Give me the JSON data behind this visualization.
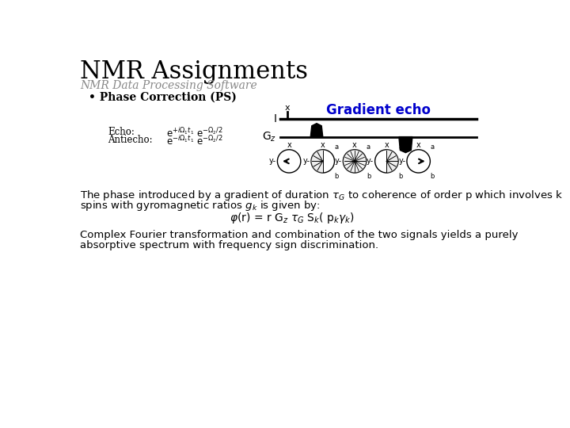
{
  "title": "NMR Assignments",
  "subtitle": "NMR Data Processing Software",
  "bullet": "• Phase Correction (PS)",
  "gradient_echo_label": "Gradient echo",
  "gradient_echo_color": "#0000CC",
  "echo_label": "Echo:",
  "antiecho_label": "Antiecho:",
  "paragraph1_line1": "The phase introduced by a gradient of duration τ",
  "paragraph1_tail1": " to coherence of order p which involves k",
  "paragraph1_line2": "spins with gyromagnetic ratios g",
  "paragraph1_tail2": " is given by:",
  "paragraph2_line1": "Complex Fourier transformation and combination of the two signals yields a purely",
  "paragraph2_line2": "absorptive spectrum with frequency sign discrimination.",
  "bg_color": "#FFFFFF",
  "text_color": "#000000",
  "gray_color": "#888888"
}
